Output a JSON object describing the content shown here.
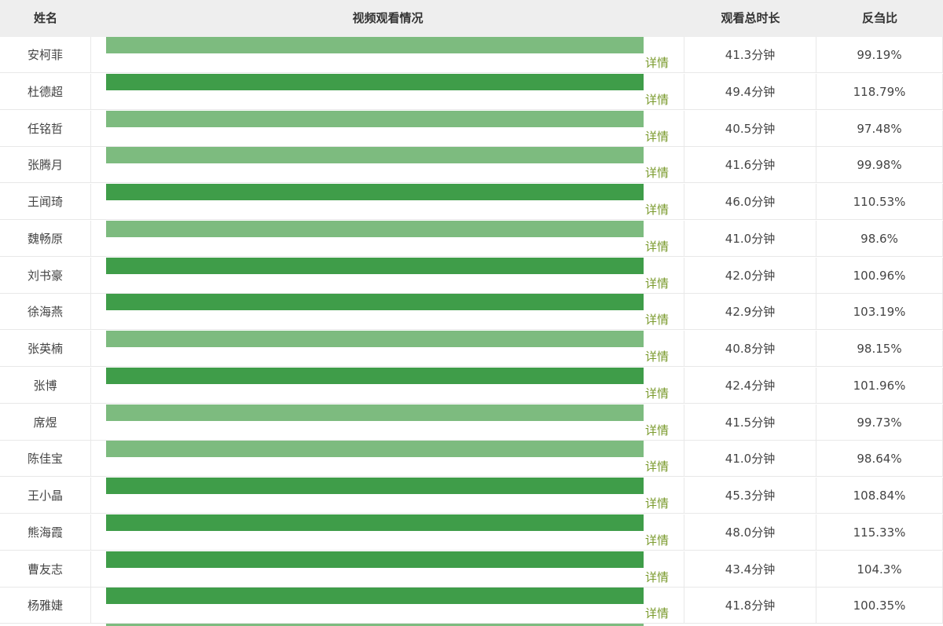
{
  "header": {
    "name": "姓名",
    "video": "视频观看情况",
    "duration": "观看总时长",
    "ratio": "反刍比"
  },
  "detail_label": "详情",
  "colors": {
    "bar_dark": "#3f9d49",
    "bar_light": "#7dbb7f",
    "detail_link": "#7a9a2c",
    "header_bg": "#eeeeee"
  },
  "rows": [
    {
      "name": "安柯菲",
      "duration": "41.3分钟",
      "ratio": "99.19%",
      "bar": "light"
    },
    {
      "name": "杜德超",
      "duration": "49.4分钟",
      "ratio": "118.79%",
      "bar": "dark"
    },
    {
      "name": "任铭哲",
      "duration": "40.5分钟",
      "ratio": "97.48%",
      "bar": "light"
    },
    {
      "name": "张腾月",
      "duration": "41.6分钟",
      "ratio": "99.98%",
      "bar": "light"
    },
    {
      "name": "王闻琦",
      "duration": "46.0分钟",
      "ratio": "110.53%",
      "bar": "dark"
    },
    {
      "name": "魏畅原",
      "duration": "41.0分钟",
      "ratio": "98.6%",
      "bar": "light"
    },
    {
      "name": "刘书豪",
      "duration": "42.0分钟",
      "ratio": "100.96%",
      "bar": "dark"
    },
    {
      "name": "徐海燕",
      "duration": "42.9分钟",
      "ratio": "103.19%",
      "bar": "dark"
    },
    {
      "name": "张英楠",
      "duration": "40.8分钟",
      "ratio": "98.15%",
      "bar": "light"
    },
    {
      "name": "张博",
      "duration": "42.4分钟",
      "ratio": "101.96%",
      "bar": "dark"
    },
    {
      "name": "席煜",
      "duration": "41.5分钟",
      "ratio": "99.73%",
      "bar": "light"
    },
    {
      "name": "陈佳宝",
      "duration": "41.0分钟",
      "ratio": "98.64%",
      "bar": "light"
    },
    {
      "name": "王小晶",
      "duration": "45.3分钟",
      "ratio": "108.84%",
      "bar": "dark"
    },
    {
      "name": "熊海霞",
      "duration": "48.0分钟",
      "ratio": "115.33%",
      "bar": "dark"
    },
    {
      "name": "曹友志",
      "duration": "43.4分钟",
      "ratio": "104.3%",
      "bar": "dark"
    },
    {
      "name": "杨雅婕",
      "duration": "41.8分钟",
      "ratio": "100.35%",
      "bar": "dark"
    }
  ]
}
